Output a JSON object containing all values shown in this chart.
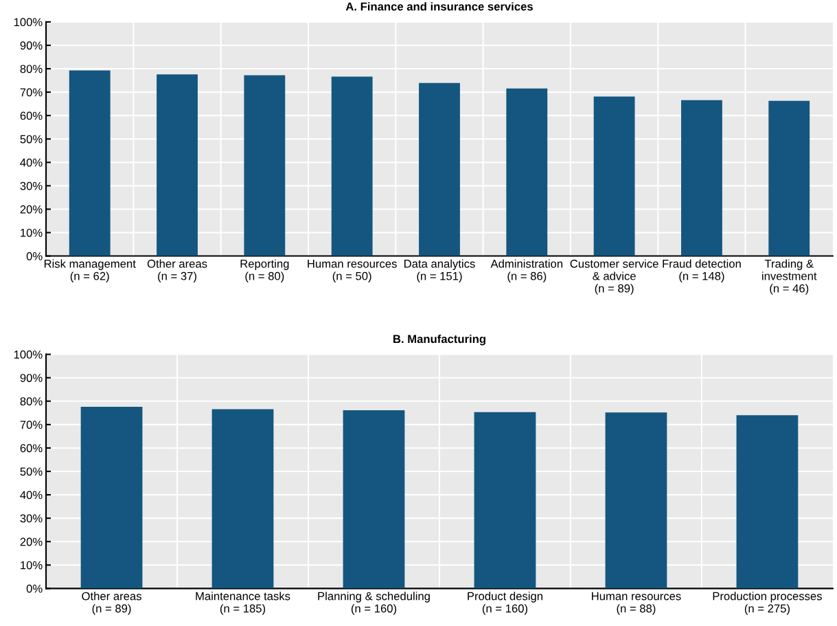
{
  "chart_data": [
    {
      "type": "bar",
      "title": "A. Finance and insurance services",
      "categories": [
        "Risk management\n(n = 62)",
        "Other areas\n(n = 37)",
        "Reporting\n(n = 80)",
        "Human resources\n(n = 50)",
        "Data analytics\n(n = 151)",
        "Administration\n(n = 86)",
        "Customer service\n& advice\n(n = 89)",
        "Fraud detection\n(n = 148)",
        "Trading &\ninvestment\n(n = 46)"
      ],
      "values": [
        79.3,
        77.6,
        77.2,
        76.6,
        73.9,
        71.6,
        68.1,
        66.6,
        66.3
      ],
      "color": "#14567f",
      "ylim": [
        0,
        100
      ],
      "yticks": [
        {
          "value": 0,
          "label": "0%"
        },
        {
          "value": 10,
          "label": "10%"
        },
        {
          "value": 20,
          "label": "20%"
        },
        {
          "value": 30,
          "label": "30%"
        },
        {
          "value": 40,
          "label": "40%"
        },
        {
          "value": 50,
          "label": "50%"
        },
        {
          "value": 60,
          "label": "60%"
        },
        {
          "value": 70,
          "label": "70%"
        },
        {
          "value": 80,
          "label": "80%"
        },
        {
          "value": 90,
          "label": "90%"
        },
        {
          "value": 100,
          "label": "100%"
        }
      ],
      "grid": true
    },
    {
      "type": "bar",
      "title": "B. Manufacturing",
      "categories": [
        "Other areas\n(n = 89)",
        "Maintenance tasks\n(n = 185)",
        "Planning & scheduling\n(n = 160)",
        "Product design\n(n = 160)",
        "Human resources\n(n = 88)",
        "Production processes\n(n = 275)"
      ],
      "values": [
        77.6,
        76.6,
        76.1,
        75.3,
        75.2,
        74.0
      ],
      "color": "#14567f",
      "ylim": [
        0,
        100
      ],
      "yticks": [
        {
          "value": 0,
          "label": "0%"
        },
        {
          "value": 10,
          "label": "10%"
        },
        {
          "value": 20,
          "label": "20%"
        },
        {
          "value": 30,
          "label": "30%"
        },
        {
          "value": 40,
          "label": "40%"
        },
        {
          "value": 50,
          "label": "50%"
        },
        {
          "value": 60,
          "label": "60%"
        },
        {
          "value": 70,
          "label": "70%"
        },
        {
          "value": 80,
          "label": "80%"
        },
        {
          "value": 90,
          "label": "90%"
        },
        {
          "value": 100,
          "label": "100%"
        }
      ],
      "grid": true
    }
  ]
}
